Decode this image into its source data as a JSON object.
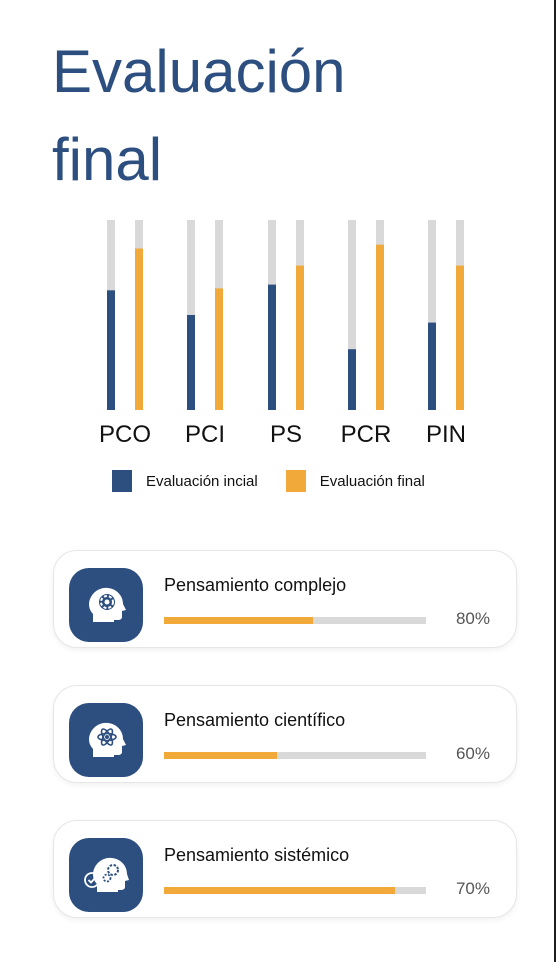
{
  "page": {
    "title": "Evaluación final"
  },
  "chart_data": {
    "type": "bar",
    "categories": [
      "PCO",
      "PCI",
      "PS",
      "PCR",
      "PIN"
    ],
    "series": [
      {
        "name": "Evaluación incial",
        "color": "#2d4f80",
        "values": [
          63,
          50,
          66,
          32,
          46
        ]
      },
      {
        "name": "Evaluación final",
        "color": "#f1a93a",
        "values": [
          85,
          64,
          76,
          87,
          76
        ]
      }
    ],
    "ylim": [
      0,
      100
    ],
    "track_color": "#d9d9d9",
    "legend_position": "bottom"
  },
  "skills": [
    {
      "title": "Pensamiento complejo",
      "percent_label": "80%",
      "fill_fraction": 0.57,
      "icon": "head-gear-icon"
    },
    {
      "title": "Pensamiento científico",
      "percent_label": "60%",
      "fill_fraction": 0.43,
      "icon": "head-atom-icon"
    },
    {
      "title": "Pensamiento sistémico",
      "percent_label": "70%",
      "fill_fraction": 0.88,
      "icon": "head-gears-check-icon"
    }
  ],
  "colors": {
    "primary": "#2d4f80",
    "accent": "#f1a93a"
  }
}
